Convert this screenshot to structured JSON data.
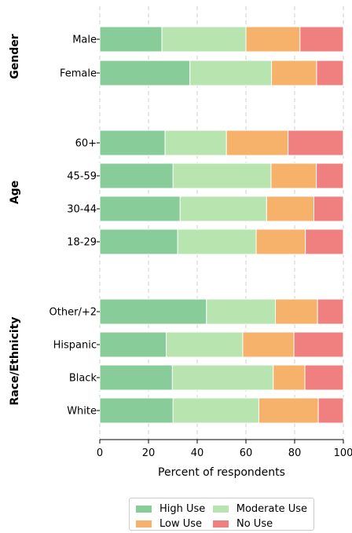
{
  "chart_data": {
    "type": "bar",
    "orientation": "horizontal",
    "stacked": true,
    "xlabel": "Percent of respondents",
    "xlim": [
      0,
      100
    ],
    "xticks": [
      "0",
      "20",
      "40",
      "60",
      "80",
      "100"
    ],
    "grid": "vertical dashed",
    "legend_position": "bottom-center",
    "series": [
      {
        "name": "High Use",
        "color": "#88cc99"
      },
      {
        "name": "Moderate Use",
        "color": "#b8e4b0"
      },
      {
        "name": "Low Use",
        "color": "#f6b26b"
      },
      {
        "name": "No Use",
        "color": "#f08080"
      }
    ],
    "groups": [
      {
        "name": "Gender",
        "rows": [
          {
            "label": "Male",
            "values": [
              25.5,
              34.5,
              22.2,
              17.8
            ]
          },
          {
            "label": "Female",
            "values": [
              37.0,
              33.5,
              18.5,
              11.0
            ]
          }
        ]
      },
      {
        "name": "Age",
        "rows": [
          {
            "label": "60+",
            "values": [
              26.8,
              25.2,
              25.3,
              22.7
            ]
          },
          {
            "label": "45-59",
            "values": [
              30.1,
              40.2,
              18.6,
              11.1
            ]
          },
          {
            "label": "30-44",
            "values": [
              33.0,
              35.5,
              19.4,
              12.1
            ]
          },
          {
            "label": "18-29",
            "values": [
              32.0,
              32.2,
              20.2,
              15.6
            ]
          }
        ]
      },
      {
        "name": "Race/Ethnicity",
        "rows": [
          {
            "label": "Other/+2",
            "values": [
              43.8,
              28.3,
              17.3,
              10.6
            ]
          },
          {
            "label": "Hispanic",
            "values": [
              27.3,
              31.4,
              21.0,
              20.3
            ]
          },
          {
            "label": "Black",
            "values": [
              29.8,
              41.4,
              13.0,
              15.8
            ]
          },
          {
            "label": "White",
            "values": [
              30.1,
              35.2,
              24.4,
              10.3
            ]
          }
        ]
      }
    ]
  }
}
